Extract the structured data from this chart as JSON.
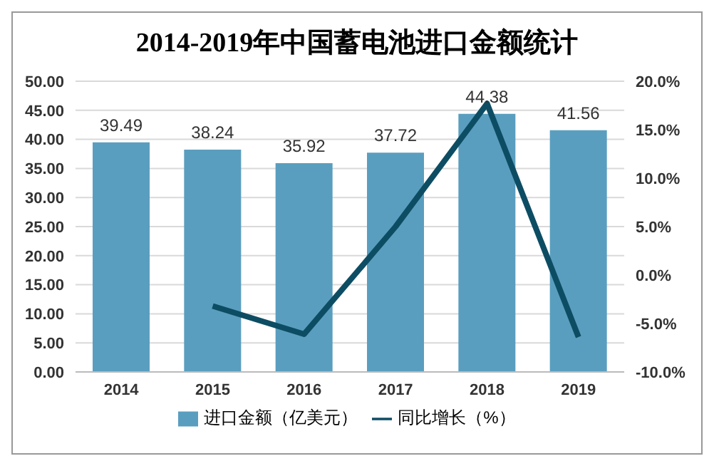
{
  "chart_data": {
    "type": "bar",
    "title": "2014-2019年中国蓄电池进口金额统计",
    "categories": [
      "2014",
      "2015",
      "2016",
      "2017",
      "2018",
      "2019"
    ],
    "series": [
      {
        "name": "进口金额（亿美元）",
        "color": "#5a9ebf",
        "values": [
          39.49,
          38.24,
          35.92,
          37.72,
          44.38,
          41.56
        ],
        "value_labels": [
          "39.49",
          "38.24",
          "35.92",
          "37.72",
          "44.38",
          "41.56"
        ]
      },
      {
        "name": "同比增长（%）",
        "type": "line",
        "axis": "y2",
        "color": "#0d4d63",
        "values": [
          null,
          -3.2,
          -6.1,
          5.0,
          17.7,
          -6.4
        ]
      }
    ],
    "ylim": [
      0,
      50
    ],
    "yticks": [
      {
        "value": 0,
        "label": "0.00"
      },
      {
        "value": 5,
        "label": "5.00"
      },
      {
        "value": 10,
        "label": "10.00"
      },
      {
        "value": 15,
        "label": "15.00"
      },
      {
        "value": 20,
        "label": "20.00"
      },
      {
        "value": 25,
        "label": "25.00"
      },
      {
        "value": 30,
        "label": "30.00"
      },
      {
        "value": 35,
        "label": "35.00"
      },
      {
        "value": 40,
        "label": "40.00"
      },
      {
        "value": 45,
        "label": "45.00"
      },
      {
        "value": 50,
        "label": "50.00"
      }
    ],
    "y2lim": [
      -10,
      20
    ],
    "y2ticks": [
      {
        "value": -10,
        "label": "-10.0%"
      },
      {
        "value": -5,
        "label": "-5.0%"
      },
      {
        "value": 0,
        "label": "0.0%"
      },
      {
        "value": 5,
        "label": "5.0%"
      },
      {
        "value": 10,
        "label": "10.0%"
      },
      {
        "value": 15,
        "label": "15.0%"
      },
      {
        "value": 20,
        "label": "20.0%"
      }
    ],
    "grid": "y",
    "legend": "bottom",
    "marker": "none"
  }
}
